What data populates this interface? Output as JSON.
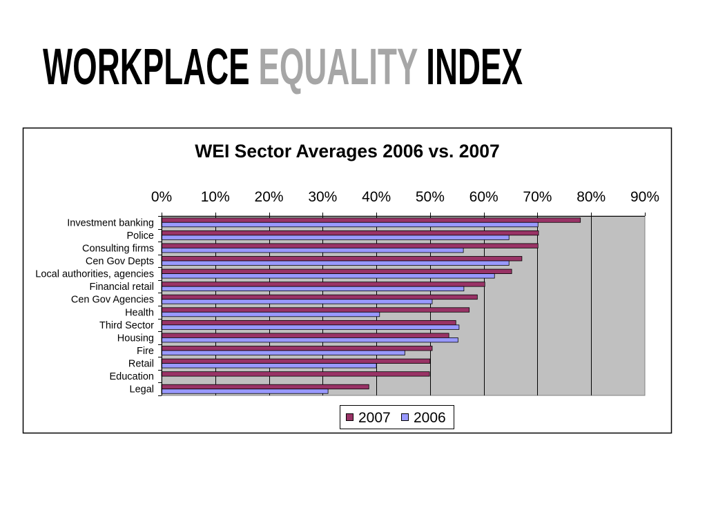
{
  "slide": {
    "title_words": [
      {
        "text": "WORKPLACE",
        "color": "#000000"
      },
      {
        "text": "EQUALITY",
        "color": "#A6A6A6"
      },
      {
        "text": "INDEX",
        "color": "#000000"
      }
    ]
  },
  "chart_data": {
    "type": "bar",
    "orientation": "horizontal",
    "title": "WEI Sector Averages 2006 vs. 2007",
    "xlabel": "",
    "ylabel": "",
    "xlim": [
      0,
      90
    ],
    "x_tick_labels": [
      "0%",
      "10%",
      "20%",
      "30%",
      "40%",
      "50%",
      "60%",
      "70%",
      "80%",
      "90%"
    ],
    "x_axis_position": "top",
    "grid": true,
    "legend_position": "bottom",
    "plot_background": "#C0C0C0",
    "categories": [
      "Investment banking",
      "Police",
      "Consulting firms",
      "Cen Gov Depts",
      "Local authorities, agencies",
      "Financial retail",
      "Cen Gov Agencies",
      "Health",
      "Third Sector",
      "Housing",
      "Fire",
      "Retail",
      "Education",
      "Legal"
    ],
    "series": [
      {
        "name": "2007",
        "color": "#993366",
        "values": [
          78.0,
          70.2,
          70.1,
          67.1,
          65.2,
          60.2,
          58.8,
          57.3,
          54.8,
          53.5,
          50.4,
          50.0,
          49.9,
          38.6
        ]
      },
      {
        "name": "2006",
        "color": "#9999FF",
        "values": [
          70.1,
          64.7,
          56.2,
          64.7,
          62.0,
          56.3,
          50.4,
          40.6,
          55.4,
          55.2,
          45.3,
          40.0,
          null,
          31.0
        ]
      }
    ]
  }
}
